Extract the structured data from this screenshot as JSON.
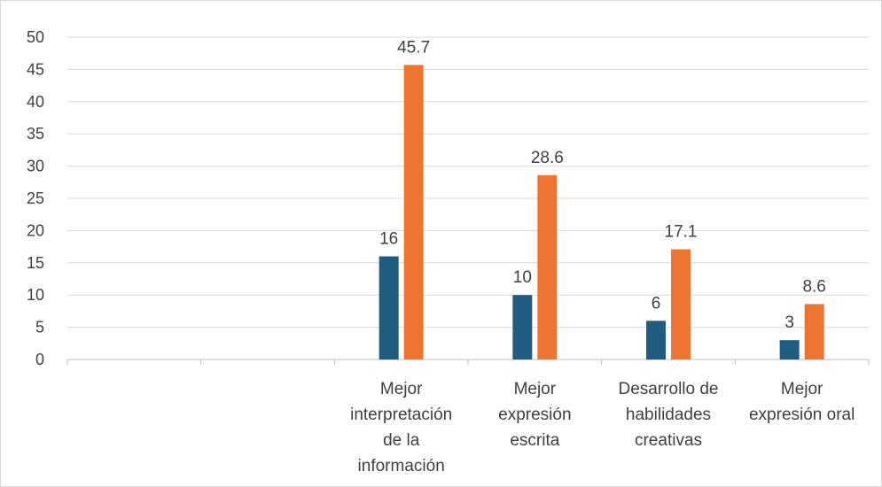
{
  "chart_data": {
    "type": "bar",
    "title": "",
    "xlabel": "",
    "ylabel": "",
    "ylim": [
      0,
      50
    ],
    "yticks": [
      0,
      5,
      10,
      15,
      20,
      25,
      30,
      35,
      40,
      45,
      50
    ],
    "grid": true,
    "legend": "none",
    "categories": [
      "",
      "",
      "Mejor interpretación de la información",
      "Mejor expresión escrita",
      "Desarrollo de habilidades creativas",
      "Mejor expresión oral"
    ],
    "category_lines": [
      [],
      [],
      [
        "Mejor",
        "interpretación",
        "de la",
        "información"
      ],
      [
        "Mejor",
        "expresión",
        "escrita"
      ],
      [
        "Desarrollo de",
        "habilidades",
        "creativas"
      ],
      [
        "Mejor",
        "expresión oral"
      ]
    ],
    "series": [
      {
        "color": "#1f5c7f",
        "values": [
          null,
          null,
          16,
          10,
          6,
          3
        ],
        "labels": [
          "",
          "",
          "16",
          "10",
          "6",
          "3"
        ]
      },
      {
        "color": "#ed7531",
        "values": [
          null,
          null,
          45.7,
          28.6,
          17.1,
          8.6
        ],
        "labels": [
          "",
          "",
          "45.7",
          "28.6",
          "17.1",
          "8.6"
        ]
      }
    ]
  }
}
